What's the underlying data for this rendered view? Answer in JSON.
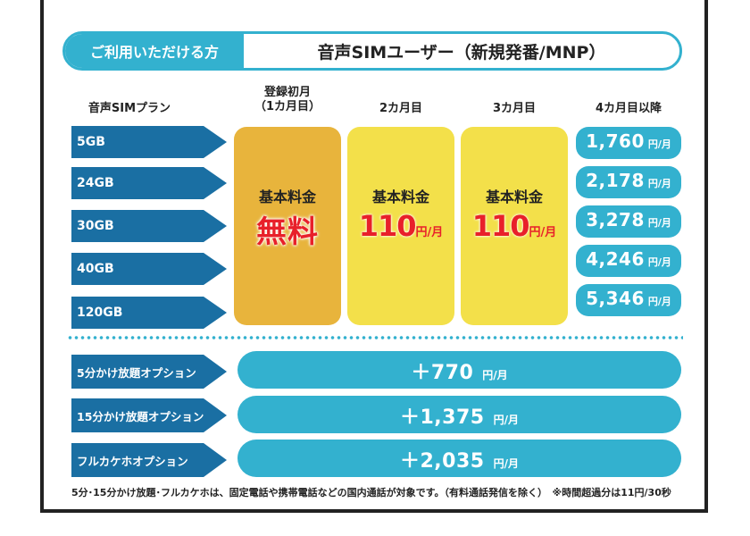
{
  "header": {
    "left_label": "ご利用いただける方",
    "right_label": "音声SIMユーザー（新規発番/MNP）"
  },
  "columns": {
    "plan": "音声SIMプラン",
    "first_month_l1": "登録初月",
    "first_month_l2": "（1カ月目）",
    "month2": "2カ月目",
    "month3": "3カ月目",
    "month4_plus": "4カ月目以降"
  },
  "plans": [
    "5GB",
    "24GB",
    "30GB",
    "40GB",
    "120GB"
  ],
  "first_month": {
    "label": "基本料金",
    "price": "無料"
  },
  "month2": {
    "label": "基本料金",
    "price": "110",
    "unit": "円/月"
  },
  "month3": {
    "label": "基本料金",
    "price": "110",
    "unit": "円/月"
  },
  "later_prices": [
    {
      "price": "1,760",
      "unit": "円/月"
    },
    {
      "price": "2,178",
      "unit": "円/月"
    },
    {
      "price": "3,278",
      "unit": "円/月"
    },
    {
      "price": "4,246",
      "unit": "円/月"
    },
    {
      "price": "5,346",
      "unit": "円/月"
    }
  ],
  "options": [
    {
      "name": "5分かけ放題オプション",
      "price": "＋770",
      "unit": "円/月"
    },
    {
      "name": "15分かけ放題オプション",
      "price": "＋1,375",
      "unit": "円/月"
    },
    {
      "name": "フルカケホオプション",
      "price": "＋2,035",
      "unit": "円/月"
    }
  ],
  "footnote": "5分･15分かけ放題･フルカケホは、固定電話や携帯電話などの国内通話が対象です。（有料通話発信を除く）　※時間超過分は11円/30秒",
  "colors": {
    "accent": "#33b1cf",
    "navy": "#1a6fa3",
    "free_bg": "#e8b43c",
    "month_bg": "#f3e04a",
    "price_red": "#e8202a"
  }
}
